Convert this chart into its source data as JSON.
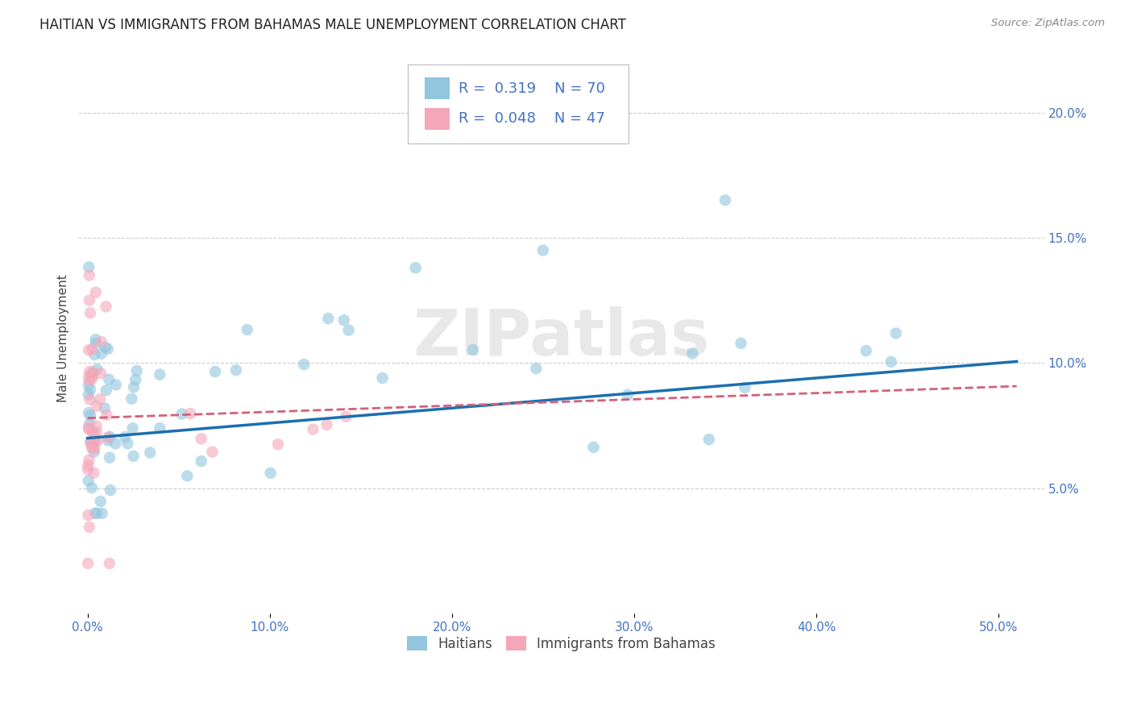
{
  "title": "HAITIAN VS IMMIGRANTS FROM BAHAMAS MALE UNEMPLOYMENT CORRELATION CHART",
  "source": "Source: ZipAtlas.com",
  "xlabel_ticks": [
    0.0,
    0.1,
    0.2,
    0.3,
    0.4,
    0.5
  ],
  "xlabel_labels": [
    "0.0%",
    "10.0%",
    "20.0%",
    "30.0%",
    "40.0%",
    "50.0%"
  ],
  "ylabel_ticks": [
    0.05,
    0.1,
    0.15,
    0.2
  ],
  "ylabel_labels": [
    "5.0%",
    "10.0%",
    "15.0%",
    "20.0%"
  ],
  "xlim": [
    -0.005,
    0.525
  ],
  "ylim": [
    0.0,
    0.22
  ],
  "legend1_R": "0.319",
  "legend1_N": "70",
  "legend2_R": "0.048",
  "legend2_N": "47",
  "blue_color": "#92c5de",
  "pink_color": "#f4a7b9",
  "trend_blue": "#1a6faf",
  "trend_pink": "#d4607a",
  "ylabel": "Male Unemployment",
  "watermark": "ZIPatlas"
}
